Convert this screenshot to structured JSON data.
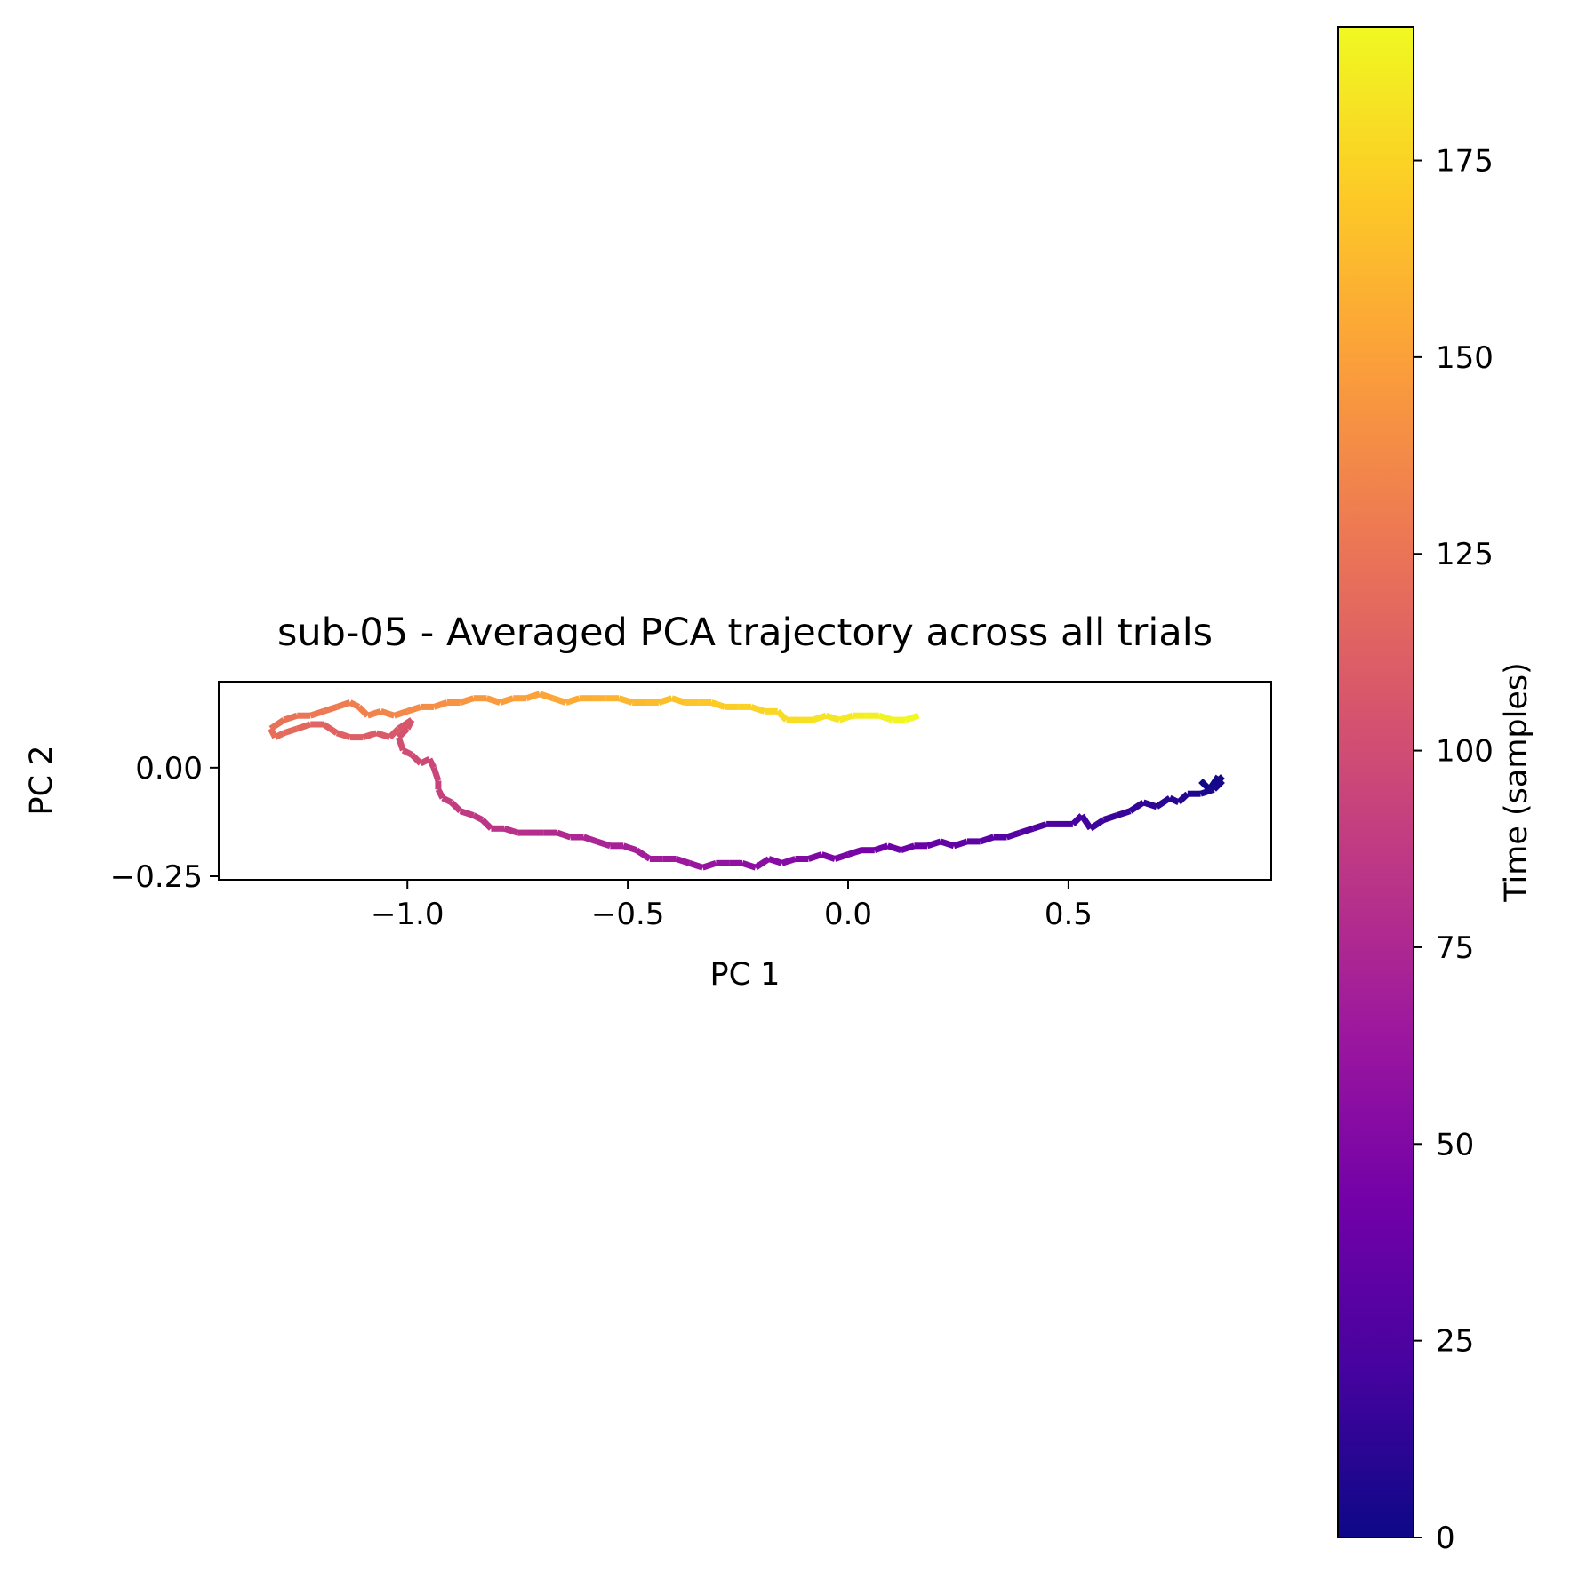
{
  "chart_data": {
    "type": "line",
    "title": "sub-05 - Averaged PCA trajectory across all trials",
    "xlabel": "PC 1",
    "ylabel": "PC 2",
    "xlim": [
      -1.42,
      0.95
    ],
    "ylim": [
      -0.25,
      0.19
    ],
    "xticks": [
      -1.0,
      -0.5,
      0.0,
      0.5
    ],
    "xtick_labels": [
      "−1.0",
      "−0.5",
      "0.0",
      "0.5"
    ],
    "yticks": [
      -0.25,
      0.0
    ],
    "ytick_labels": [
      "−0.25",
      "0.00"
    ],
    "grid": false,
    "colormap": "plasma",
    "colorbar": {
      "label": "Time (samples)",
      "range": [
        0,
        192
      ],
      "ticks": [
        0,
        25,
        50,
        75,
        100,
        125,
        150,
        175
      ],
      "tick_labels": [
        "0",
        "25",
        "50",
        "75",
        "100",
        "125",
        "150",
        "175"
      ]
    },
    "colormap_stops": [
      "#0d0887",
      "#46039f",
      "#7201a8",
      "#9c179e",
      "#bd3786",
      "#d8576b",
      "#ed7953",
      "#fb9f3a",
      "#fdca26",
      "#f0f921"
    ],
    "trajectory": {
      "color_by": "time",
      "t_start": 0,
      "t_end": 192,
      "points": [
        [
          0.8,
          -0.03
        ],
        [
          0.82,
          -0.05
        ],
        [
          0.84,
          -0.02
        ],
        [
          0.85,
          -0.03
        ],
        [
          0.83,
          -0.05
        ],
        [
          0.8,
          -0.06
        ],
        [
          0.77,
          -0.06
        ],
        [
          0.75,
          -0.08
        ],
        [
          0.73,
          -0.07
        ],
        [
          0.7,
          -0.09
        ],
        [
          0.67,
          -0.08
        ],
        [
          0.64,
          -0.1
        ],
        [
          0.61,
          -0.11
        ],
        [
          0.58,
          -0.12
        ],
        [
          0.55,
          -0.14
        ],
        [
          0.53,
          -0.11
        ],
        [
          0.51,
          -0.13
        ],
        [
          0.48,
          -0.13
        ],
        [
          0.45,
          -0.13
        ],
        [
          0.42,
          -0.14
        ],
        [
          0.39,
          -0.15
        ],
        [
          0.36,
          -0.16
        ],
        [
          0.33,
          -0.16
        ],
        [
          0.3,
          -0.17
        ],
        [
          0.27,
          -0.17
        ],
        [
          0.24,
          -0.18
        ],
        [
          0.21,
          -0.17
        ],
        [
          0.18,
          -0.18
        ],
        [
          0.15,
          -0.18
        ],
        [
          0.12,
          -0.19
        ],
        [
          0.09,
          -0.18
        ],
        [
          0.06,
          -0.19
        ],
        [
          0.03,
          -0.19
        ],
        [
          0.0,
          -0.2
        ],
        [
          -0.03,
          -0.21
        ],
        [
          -0.06,
          -0.2
        ],
        [
          -0.09,
          -0.21
        ],
        [
          -0.12,
          -0.21
        ],
        [
          -0.15,
          -0.22
        ],
        [
          -0.18,
          -0.21
        ],
        [
          -0.21,
          -0.23
        ],
        [
          -0.24,
          -0.22
        ],
        [
          -0.27,
          -0.22
        ],
        [
          -0.3,
          -0.22
        ],
        [
          -0.33,
          -0.23
        ],
        [
          -0.36,
          -0.22
        ],
        [
          -0.39,
          -0.21
        ],
        [
          -0.42,
          -0.21
        ],
        [
          -0.45,
          -0.21
        ],
        [
          -0.48,
          -0.19
        ],
        [
          -0.51,
          -0.18
        ],
        [
          -0.54,
          -0.18
        ],
        [
          -0.57,
          -0.17
        ],
        [
          -0.6,
          -0.16
        ],
        [
          -0.63,
          -0.16
        ],
        [
          -0.66,
          -0.15
        ],
        [
          -0.69,
          -0.15
        ],
        [
          -0.72,
          -0.15
        ],
        [
          -0.75,
          -0.15
        ],
        [
          -0.78,
          -0.14
        ],
        [
          -0.81,
          -0.14
        ],
        [
          -0.83,
          -0.12
        ],
        [
          -0.85,
          -0.11
        ],
        [
          -0.88,
          -0.1
        ],
        [
          -0.9,
          -0.08
        ],
        [
          -0.92,
          -0.07
        ],
        [
          -0.93,
          -0.05
        ],
        [
          -0.93,
          -0.03
        ],
        [
          -0.94,
          0.0
        ],
        [
          -0.95,
          0.02
        ],
        [
          -0.97,
          0.01
        ],
        [
          -0.99,
          0.03
        ],
        [
          -1.01,
          0.04
        ],
        [
          -1.02,
          0.07
        ],
        [
          -1.0,
          0.09
        ],
        [
          -0.99,
          0.11
        ],
        [
          -1.02,
          0.09
        ],
        [
          -1.04,
          0.07
        ],
        [
          -1.07,
          0.08
        ],
        [
          -1.1,
          0.07
        ],
        [
          -1.13,
          0.07
        ],
        [
          -1.16,
          0.08
        ],
        [
          -1.19,
          0.1
        ],
        [
          -1.22,
          0.1
        ],
        [
          -1.25,
          0.09
        ],
        [
          -1.28,
          0.08
        ],
        [
          -1.3,
          0.07
        ],
        [
          -1.31,
          0.09
        ],
        [
          -1.28,
          0.11
        ],
        [
          -1.25,
          0.12
        ],
        [
          -1.22,
          0.12
        ],
        [
          -1.19,
          0.13
        ],
        [
          -1.16,
          0.14
        ],
        [
          -1.13,
          0.15
        ],
        [
          -1.11,
          0.14
        ],
        [
          -1.09,
          0.12
        ],
        [
          -1.06,
          0.13
        ],
        [
          -1.03,
          0.12
        ],
        [
          -1.0,
          0.13
        ],
        [
          -0.97,
          0.14
        ],
        [
          -0.94,
          0.14
        ],
        [
          -0.91,
          0.15
        ],
        [
          -0.88,
          0.15
        ],
        [
          -0.85,
          0.16
        ],
        [
          -0.82,
          0.16
        ],
        [
          -0.79,
          0.15
        ],
        [
          -0.76,
          0.16
        ],
        [
          -0.73,
          0.16
        ],
        [
          -0.7,
          0.17
        ],
        [
          -0.67,
          0.16
        ],
        [
          -0.64,
          0.15
        ],
        [
          -0.61,
          0.16
        ],
        [
          -0.58,
          0.16
        ],
        [
          -0.55,
          0.16
        ],
        [
          -0.52,
          0.16
        ],
        [
          -0.49,
          0.15
        ],
        [
          -0.46,
          0.15
        ],
        [
          -0.43,
          0.15
        ],
        [
          -0.4,
          0.16
        ],
        [
          -0.37,
          0.15
        ],
        [
          -0.34,
          0.15
        ],
        [
          -0.31,
          0.15
        ],
        [
          -0.28,
          0.14
        ],
        [
          -0.25,
          0.14
        ],
        [
          -0.22,
          0.14
        ],
        [
          -0.19,
          0.13
        ],
        [
          -0.16,
          0.13
        ],
        [
          -0.14,
          0.11
        ],
        [
          -0.11,
          0.11
        ],
        [
          -0.08,
          0.11
        ],
        [
          -0.05,
          0.12
        ],
        [
          -0.02,
          0.11
        ],
        [
          0.01,
          0.12
        ],
        [
          0.04,
          0.12
        ],
        [
          0.07,
          0.12
        ],
        [
          0.1,
          0.11
        ],
        [
          0.13,
          0.11
        ],
        [
          0.16,
          0.12
        ]
      ]
    }
  }
}
